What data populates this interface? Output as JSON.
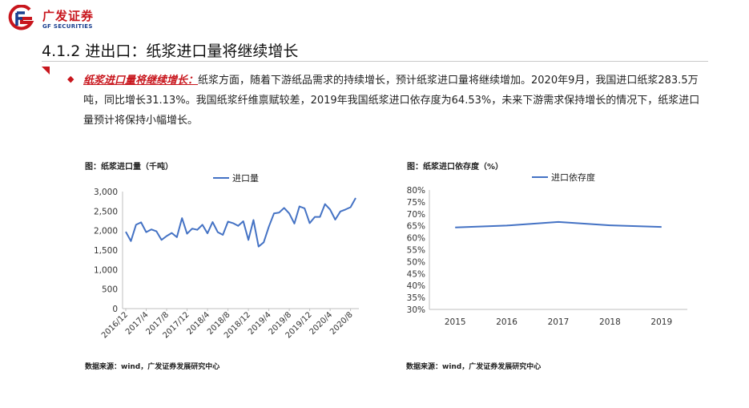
{
  "header": {
    "logo_cn": "广发证券",
    "logo_en": "GF SECURITIES",
    "title": "4.1.2 进出口：纸浆进口量将继续增长"
  },
  "paragraph": {
    "highlight": "纸浆进口量将继续增长：",
    "body": "纸浆方面，随着下游纸品需求的持续增长，预计纸浆进口量将继续增加。2020年9月，我国进口纸浆283.5万吨，同比增长31.13%。我国纸浆纤维禀赋较差，2019年我国纸浆进口依存度为64.53%，未来下游需求保持增长的情况下，纸浆进口量预计将保持小幅增长。"
  },
  "colors": {
    "brand_red": "#c8161d",
    "brand_blue": "#1a3f8f",
    "series": "#4472c4"
  },
  "chart_data": [
    {
      "type": "line",
      "title": "图：纸浆进口量（千吨）",
      "source": "数据来源：wind，广发证券发展研究中心",
      "legend_position": "top-center",
      "grid": false,
      "ylim": [
        0,
        3000
      ],
      "yticks": [
        "0",
        "500",
        "1,000",
        "1,500",
        "2,000",
        "2,500",
        "3,000"
      ],
      "xtick_labels": [
        "2016/12",
        "2017/4",
        "2017/8",
        "2017/12",
        "2018/4",
        "2018/8",
        "2018/12",
        "2019/4",
        "2019/8",
        "2019/12",
        "2020/4",
        "2020/8"
      ],
      "x": [
        "2016/12",
        "2017/1",
        "2017/2",
        "2017/3",
        "2017/4",
        "2017/5",
        "2017/6",
        "2017/7",
        "2017/8",
        "2017/9",
        "2017/10",
        "2017/11",
        "2017/12",
        "2018/1",
        "2018/2",
        "2018/3",
        "2018/4",
        "2018/5",
        "2018/6",
        "2018/7",
        "2018/8",
        "2018/9",
        "2018/10",
        "2018/11",
        "2018/12",
        "2019/1",
        "2019/2",
        "2019/3",
        "2019/4",
        "2019/5",
        "2019/6",
        "2019/7",
        "2019/8",
        "2019/9",
        "2019/10",
        "2019/11",
        "2019/12",
        "2020/1",
        "2020/2",
        "2020/3",
        "2020/4",
        "2020/5",
        "2020/6",
        "2020/7",
        "2020/8",
        "2020/9"
      ],
      "series": [
        {
          "name": "进口量",
          "values": [
            1970,
            1730,
            2150,
            2210,
            1960,
            2030,
            1980,
            1760,
            1860,
            1940,
            1830,
            2320,
            1920,
            2050,
            2020,
            2150,
            1930,
            2220,
            1960,
            1890,
            2230,
            2190,
            2120,
            2240,
            1760,
            2270,
            1590,
            1700,
            2100,
            2440,
            2460,
            2580,
            2440,
            2180,
            2620,
            2570,
            2190,
            2350,
            2350,
            2680,
            2540,
            2280,
            2490,
            2540,
            2600,
            2835
          ]
        }
      ]
    },
    {
      "type": "line",
      "title": "图：纸浆进口依存度（%）",
      "source": "数据来源：wind，广发证券发展研究中心",
      "legend_position": "top-center",
      "grid": false,
      "ylim": [
        30,
        80
      ],
      "yticks": [
        "30%",
        "35%",
        "40%",
        "45%",
        "50%",
        "55%",
        "60%",
        "65%",
        "70%",
        "75%",
        "80%"
      ],
      "x": [
        "2015",
        "2016",
        "2017",
        "2018",
        "2019"
      ],
      "series": [
        {
          "name": "进口依存度",
          "values": [
            64.3,
            65.1,
            66.6,
            65.2,
            64.53
          ]
        }
      ]
    }
  ]
}
